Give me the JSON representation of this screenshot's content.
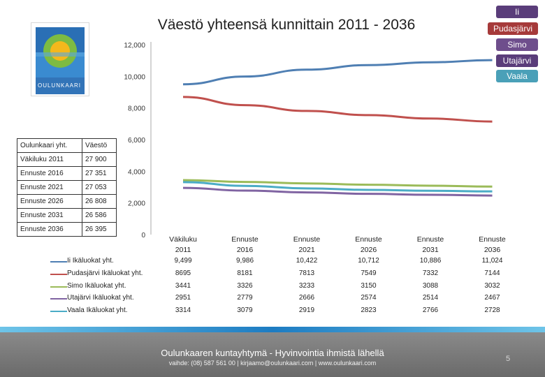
{
  "title": "Väestö yhteensä kunnittain 2011 - 2036",
  "logo_text": "OULUNKAARI",
  "legend_buttons": [
    {
      "label": "Ii",
      "color": "#5a3d7a"
    },
    {
      "label": "Pudasjärvi",
      "color": "#a63a3a"
    },
    {
      "label": "Simo",
      "color": "#6e4e8c"
    },
    {
      "label": "Utajärvi",
      "color": "#5a3d7a"
    },
    {
      "label": "Vaala",
      "color": "#4aa0b8"
    }
  ],
  "info_table": {
    "header": [
      "Oulunkaari yht.",
      "Väestö"
    ],
    "rows": [
      [
        "Väkiluku 2011",
        "27 900"
      ],
      [
        "Ennuste 2016",
        "27 351"
      ],
      [
        "Ennuste 2021",
        "27 053"
      ],
      [
        "Ennuste 2026",
        "26 808"
      ],
      [
        "Ennuste 2031",
        "26 586"
      ],
      [
        "Ennuste 2036",
        "26 395"
      ]
    ]
  },
  "chart_data": {
    "type": "line",
    "title": "Väestö yhteensä kunnittain 2011 - 2036",
    "categories": [
      "Väkiluku 2011",
      "Ennuste 2016",
      "Ennuste 2021",
      "Ennuste 2026",
      "Ennuste 2031",
      "Ennuste 2036"
    ],
    "category_lines": [
      [
        "Väkiluku",
        "2011"
      ],
      [
        "Ennuste",
        "2016"
      ],
      [
        "Ennuste",
        "2021"
      ],
      [
        "Ennuste",
        "2026"
      ],
      [
        "Ennuste",
        "2031"
      ],
      [
        "Ennuste",
        "2036"
      ]
    ],
    "y_ticks": [
      "0",
      "2,000",
      "4,000",
      "6,000",
      "8,000",
      "10,000",
      "12,000"
    ],
    "ylim": [
      0,
      12000
    ],
    "series": [
      {
        "name": "Ii Ikäluokat yht.",
        "color": "#4f7fb3",
        "values": [
          9499,
          9986,
          10422,
          10712,
          10886,
          11024
        ],
        "labels": [
          "9,499",
          "9,986",
          "10,422",
          "10,712",
          "10,886",
          "11,024"
        ]
      },
      {
        "name": "Pudasjärvi Ikäluokat yht.",
        "color": "#c0504d",
        "values": [
          8695,
          8181,
          7813,
          7549,
          7332,
          7144
        ],
        "labels": [
          "8695",
          "8181",
          "7813",
          "7549",
          "7332",
          "7144"
        ]
      },
      {
        "name": "Simo Ikäluokat yht.",
        "color": "#9bbb59",
        "values": [
          3441,
          3326,
          3233,
          3150,
          3088,
          3032
        ],
        "labels": [
          "3441",
          "3326",
          "3233",
          "3150",
          "3088",
          "3032"
        ]
      },
      {
        "name": "Utajärvi Ikäluokat yht.",
        "color": "#8064a2",
        "values": [
          2951,
          2779,
          2666,
          2574,
          2514,
          2467
        ],
        "labels": [
          "2951",
          "2779",
          "2666",
          "2574",
          "2514",
          "2467"
        ]
      },
      {
        "name": "Vaala Ikäluokat yht.",
        "color": "#4bacc6",
        "values": [
          3314,
          3079,
          2919,
          2823,
          2766,
          2728
        ],
        "labels": [
          "3314",
          "3079",
          "2919",
          "2823",
          "2766",
          "2728"
        ]
      }
    ]
  },
  "footer": {
    "title": "Oulunkaaren kuntayhtymä - Hyvinvointia ihmistä lähellä",
    "contact": "vaihde: (08) 587 561 00  |  kirjaamo@oulunkaari.com  |  www.oulunkaari.com",
    "page_number": "5"
  }
}
